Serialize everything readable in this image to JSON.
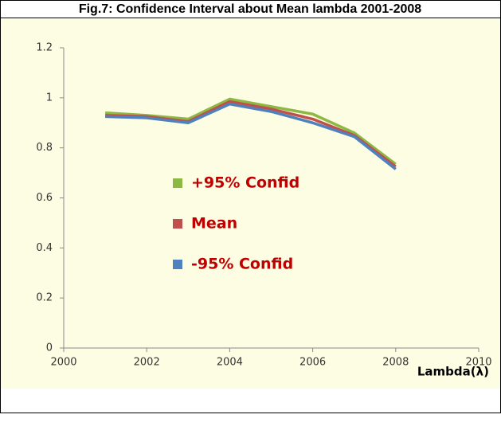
{
  "chart_data": {
    "type": "line",
    "title": "Fig.7: Confidence Interval about Mean lambda 2001-2008",
    "x_label": "Lambda(λ)",
    "x": [
      2001,
      2002,
      2003,
      2004,
      2005,
      2006,
      2007,
      2008
    ],
    "series": [
      {
        "name": "+95% Confid",
        "color": "#8db843",
        "values": [
          0.94,
          0.93,
          0.915,
          0.995,
          0.965,
          0.935,
          0.86,
          0.735
        ]
      },
      {
        "name": "Mean",
        "color": "#c0504d",
        "values": [
          0.93,
          0.925,
          0.905,
          0.985,
          0.955,
          0.915,
          0.85,
          0.725
        ]
      },
      {
        "name": "-95% Confid",
        "color": "#4f81bd",
        "values": [
          0.925,
          0.92,
          0.9,
          0.975,
          0.945,
          0.9,
          0.845,
          0.715
        ]
      }
    ],
    "xlim": [
      2000,
      2010
    ],
    "xticks": [
      2000,
      2002,
      2004,
      2006,
      2008,
      2010
    ],
    "ylim": [
      0,
      1.2
    ],
    "yticks": [
      0,
      0.2,
      0.4,
      0.6,
      0.8,
      1,
      1.2
    ]
  }
}
